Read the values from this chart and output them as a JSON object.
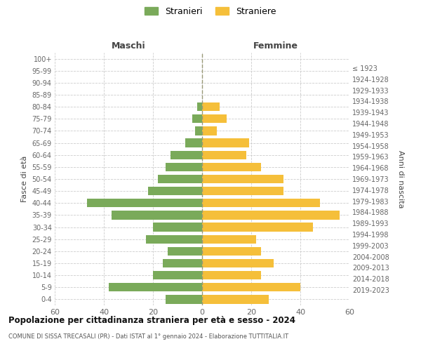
{
  "age_groups": [
    "0-4",
    "5-9",
    "10-14",
    "15-19",
    "20-24",
    "25-29",
    "30-34",
    "35-39",
    "40-44",
    "45-49",
    "50-54",
    "55-59",
    "60-64",
    "65-69",
    "70-74",
    "75-79",
    "80-84",
    "85-89",
    "90-94",
    "95-99",
    "100+"
  ],
  "birth_years": [
    "2019-2023",
    "2014-2018",
    "2009-2013",
    "2004-2008",
    "1999-2003",
    "1994-1998",
    "1989-1993",
    "1984-1988",
    "1979-1983",
    "1974-1978",
    "1969-1973",
    "1964-1968",
    "1959-1963",
    "1954-1958",
    "1949-1953",
    "1944-1948",
    "1939-1943",
    "1934-1938",
    "1929-1933",
    "1924-1928",
    "≤ 1923"
  ],
  "maschi": [
    15,
    38,
    20,
    16,
    14,
    23,
    20,
    37,
    47,
    22,
    18,
    15,
    13,
    7,
    3,
    4,
    2,
    0,
    0,
    0,
    0
  ],
  "femmine": [
    27,
    40,
    24,
    29,
    24,
    22,
    45,
    56,
    48,
    33,
    33,
    24,
    18,
    19,
    6,
    10,
    7,
    0,
    0,
    0,
    0
  ],
  "male_color": "#7aaa5a",
  "female_color": "#f5bf3a",
  "background_color": "#ffffff",
  "grid_color": "#cccccc",
  "title": "Popolazione per cittadinanza straniera per età e sesso - 2024",
  "subtitle": "COMUNE DI SISSA TRECASALI (PR) - Dati ISTAT al 1° gennaio 2024 - Elaborazione TUTTITALIA.IT",
  "xlabel_left": "Maschi",
  "xlabel_right": "Femmine",
  "ylabel_left": "Fasce di età",
  "ylabel_right": "Anni di nascita",
  "legend_male": "Stranieri",
  "legend_female": "Straniere",
  "xlim": 60
}
